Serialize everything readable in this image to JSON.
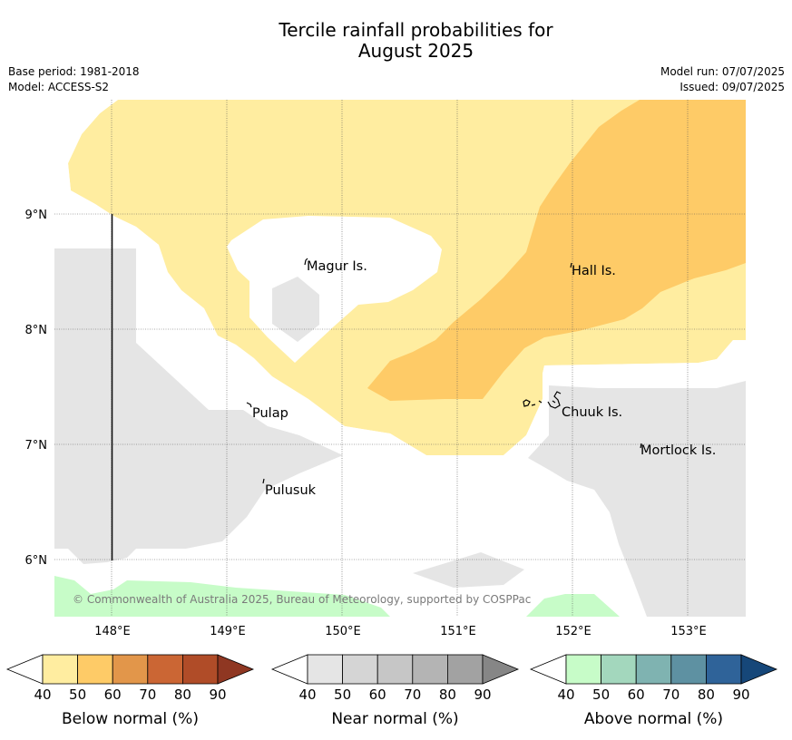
{
  "title": {
    "line1": "Tercile rainfall probabilities for",
    "line2": "August 2025"
  },
  "meta": {
    "base_period": "Base period: 1981-2018",
    "model": "Model: ACCESS-S2",
    "model_run": "Model run: 07/07/2025",
    "issued": "Issued: 09/07/2025"
  },
  "map": {
    "lat_labels": [
      "9°N",
      "8°N",
      "7°N",
      "6°N"
    ],
    "lon_labels": [
      "148°E",
      "149°E",
      "150°E",
      "151°E",
      "152°E",
      "153°E"
    ],
    "places": [
      "Magur Is.",
      "Hall Is.",
      "Pulap",
      "Chuuk Is.",
      "Mortlock Is.",
      "Pulusuk"
    ],
    "copyright": "© Commonwealth of Australia 2025, Bureau of Meteorology, supported by COSPPac",
    "colors": {
      "below_40_50": "#ffeda0",
      "below_50_60": "#fecb67",
      "near_40_50": "#e5e5e5",
      "above_40_50": "#c7fcc8",
      "grid": "#555555"
    }
  },
  "legends": [
    {
      "title": "Below normal (%)",
      "ticks": [
        "40",
        "50",
        "60",
        "70",
        "80",
        "90"
      ],
      "colors": [
        "#ffffff",
        "#ffeda0",
        "#fecb67",
        "#e2964a",
        "#cb6634",
        "#b04c28",
        "#8f3722"
      ]
    },
    {
      "title": "Near normal (%)",
      "ticks": [
        "40",
        "50",
        "60",
        "70",
        "80",
        "90"
      ],
      "colors": [
        "#ffffff",
        "#e5e5e5",
        "#d5d5d5",
        "#c6c6c6",
        "#b4b4b4",
        "#a2a2a2",
        "#868686"
      ]
    },
    {
      "title": "Above normal (%)",
      "ticks": [
        "40",
        "50",
        "60",
        "70",
        "80",
        "90"
      ],
      "colors": [
        "#ffffff",
        "#c7fcc8",
        "#a3d7bd",
        "#7fb3b1",
        "#5e91a2",
        "#2f6399",
        "#164779"
      ]
    }
  ]
}
